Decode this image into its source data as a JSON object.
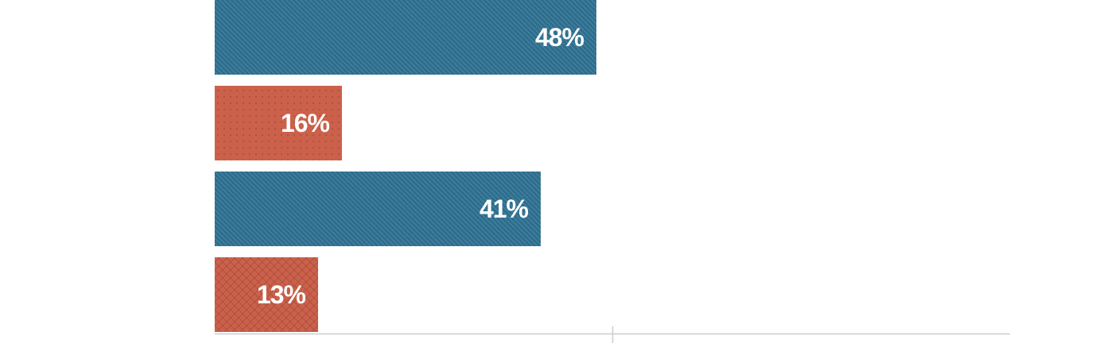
{
  "chart_data": {
    "type": "bar",
    "orientation": "horizontal",
    "categories": [
      "",
      "",
      "",
      ""
    ],
    "values": [
      48,
      16,
      41,
      13
    ],
    "labels": [
      "48%",
      "16%",
      "41%",
      "13%"
    ],
    "colors": [
      "#2d6e8e",
      "#cc614b",
      "#2d6e8e",
      "#cc614b"
    ],
    "patterns": [
      "hatch",
      "dots",
      "hatch",
      "crosshatch"
    ],
    "xlim": [
      0,
      100
    ],
    "grid": false,
    "title": "",
    "xlabel": "",
    "ylabel": ""
  }
}
